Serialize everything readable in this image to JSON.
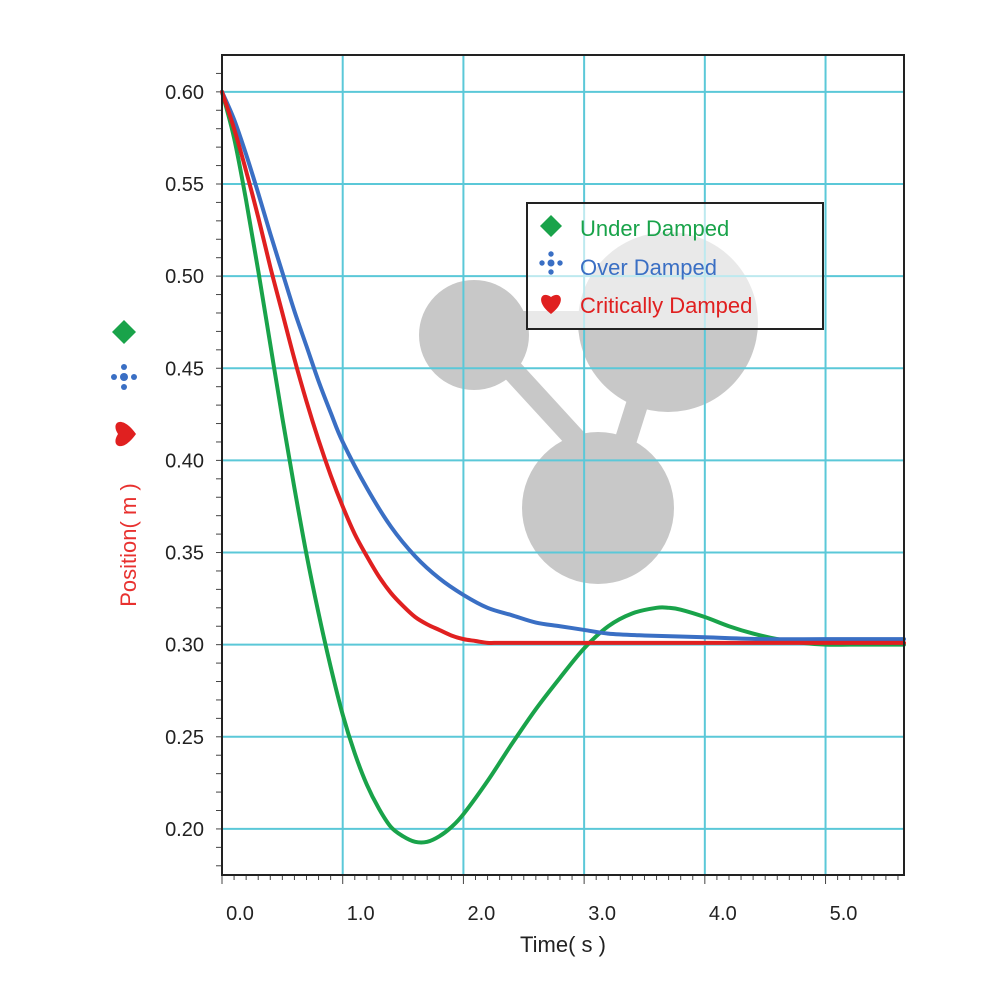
{
  "chart_data": {
    "type": "line",
    "xlabel": "Time( s )",
    "ylabel": "Position( m )",
    "xlim": [
      0,
      5.65
    ],
    "ylim": [
      0.175,
      0.62
    ],
    "x_ticks": [
      "0.0",
      "1.0",
      "2.0",
      "3.0",
      "4.0",
      "5.0"
    ],
    "y_ticks": [
      "0.20",
      "0.25",
      "0.30",
      "0.35",
      "0.40",
      "0.45",
      "0.50",
      "0.55",
      "0.60"
    ],
    "grid": true,
    "legend_position": "top-right",
    "colors": {
      "grid": "#5bc8d8",
      "frame": "#222222",
      "ylabel": "#e8312f",
      "watermark": "#c8c8c8"
    },
    "series": [
      {
        "name": "Under Damped",
        "color": "#19a34a",
        "marker": "diamond",
        "x": [
          0,
          0.1,
          0.2,
          0.3,
          0.4,
          0.5,
          0.6,
          0.7,
          0.8,
          0.9,
          1.0,
          1.1,
          1.2,
          1.3,
          1.4,
          1.5,
          1.6,
          1.7,
          1.8,
          1.9,
          2.0,
          2.2,
          2.4,
          2.6,
          2.8,
          3.0,
          3.2,
          3.4,
          3.6,
          3.7,
          3.8,
          4.0,
          4.2,
          4.4,
          4.6,
          4.8,
          5.0,
          5.2,
          5.4,
          5.65
        ],
        "y": [
          0.6,
          0.575,
          0.541,
          0.503,
          0.463,
          0.423,
          0.385,
          0.349,
          0.317,
          0.288,
          0.262,
          0.241,
          0.224,
          0.211,
          0.201,
          0.196,
          0.193,
          0.193,
          0.196,
          0.201,
          0.208,
          0.226,
          0.246,
          0.265,
          0.282,
          0.298,
          0.31,
          0.317,
          0.32,
          0.32,
          0.319,
          0.315,
          0.31,
          0.306,
          0.303,
          0.301,
          0.3,
          0.3,
          0.3,
          0.3
        ]
      },
      {
        "name": "Over Damped",
        "color": "#3a6fc4",
        "marker": "cross",
        "x": [
          0,
          0.1,
          0.2,
          0.3,
          0.4,
          0.5,
          0.6,
          0.7,
          0.8,
          0.9,
          1.0,
          1.2,
          1.4,
          1.6,
          1.8,
          2.0,
          2.2,
          2.4,
          2.6,
          2.8,
          3.0,
          3.2,
          3.5,
          4.0,
          4.5,
          5.0,
          5.65
        ],
        "y": [
          0.6,
          0.585,
          0.566,
          0.545,
          0.523,
          0.502,
          0.481,
          0.462,
          0.443,
          0.426,
          0.41,
          0.385,
          0.364,
          0.348,
          0.336,
          0.327,
          0.32,
          0.316,
          0.312,
          0.31,
          0.308,
          0.306,
          0.305,
          0.304,
          0.303,
          0.303,
          0.303
        ]
      },
      {
        "name": "Critically Damped",
        "color": "#e02020",
        "marker": "heart",
        "x": [
          0,
          0.1,
          0.2,
          0.3,
          0.4,
          0.5,
          0.6,
          0.7,
          0.8,
          0.9,
          1.0,
          1.1,
          1.2,
          1.3,
          1.4,
          1.5,
          1.6,
          1.7,
          1.8,
          1.9,
          2.0,
          2.1,
          2.2,
          2.3,
          2.5,
          3.0,
          4.0,
          5.0,
          5.65
        ],
        "y": [
          0.6,
          0.58,
          0.557,
          0.532,
          0.505,
          0.48,
          0.455,
          0.432,
          0.411,
          0.392,
          0.375,
          0.36,
          0.348,
          0.337,
          0.328,
          0.321,
          0.315,
          0.311,
          0.308,
          0.305,
          0.303,
          0.302,
          0.301,
          0.301,
          0.301,
          0.301,
          0.301,
          0.301,
          0.301
        ]
      }
    ]
  }
}
